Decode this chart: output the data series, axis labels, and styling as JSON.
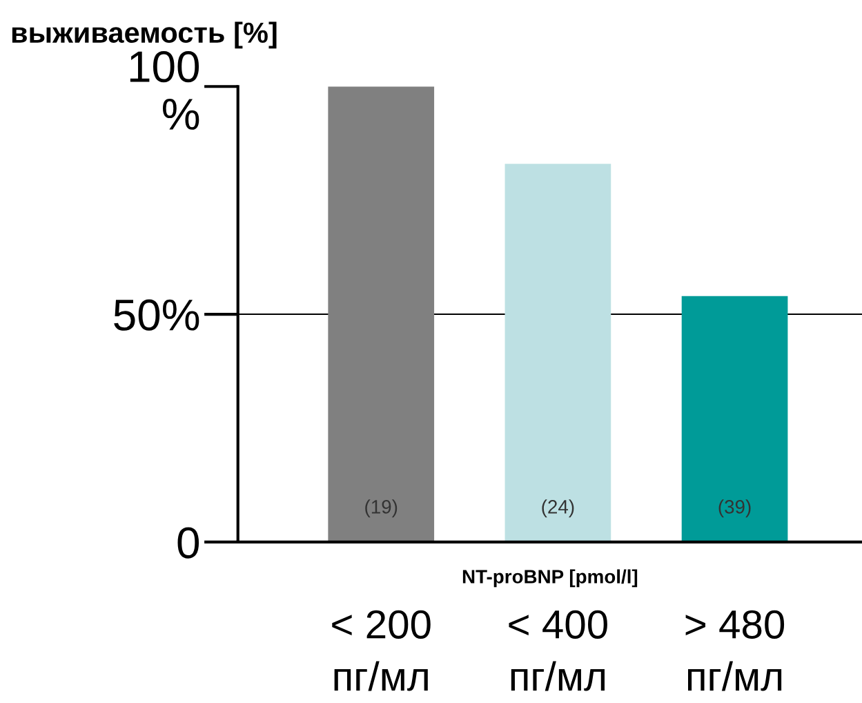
{
  "chart_data": {
    "type": "bar",
    "title": "выживаемость [%]",
    "xlabel": "NT-proBNP [pmol/l]",
    "categories": [
      "< 200\nпг/мл",
      "< 400\nпг/мл",
      "> 480\nпг/мл"
    ],
    "values": [
      100,
      83,
      54
    ],
    "colors": [
      "#808080",
      "#bde0e3",
      "#009b98"
    ],
    "ylim": [
      0,
      100
    ],
    "yticks": [
      {
        "value": 0,
        "label": "0"
      },
      {
        "value": 50,
        "label": "50%"
      },
      {
        "value": 100,
        "label": "100\n%"
      }
    ],
    "ref_lines": [
      {
        "axis": "y",
        "value": 50,
        "label": null,
        "color": "#000000"
      }
    ],
    "annotations": [
      "(19)",
      "(24)",
      "(39)"
    ],
    "grid": false,
    "legend": false
  }
}
